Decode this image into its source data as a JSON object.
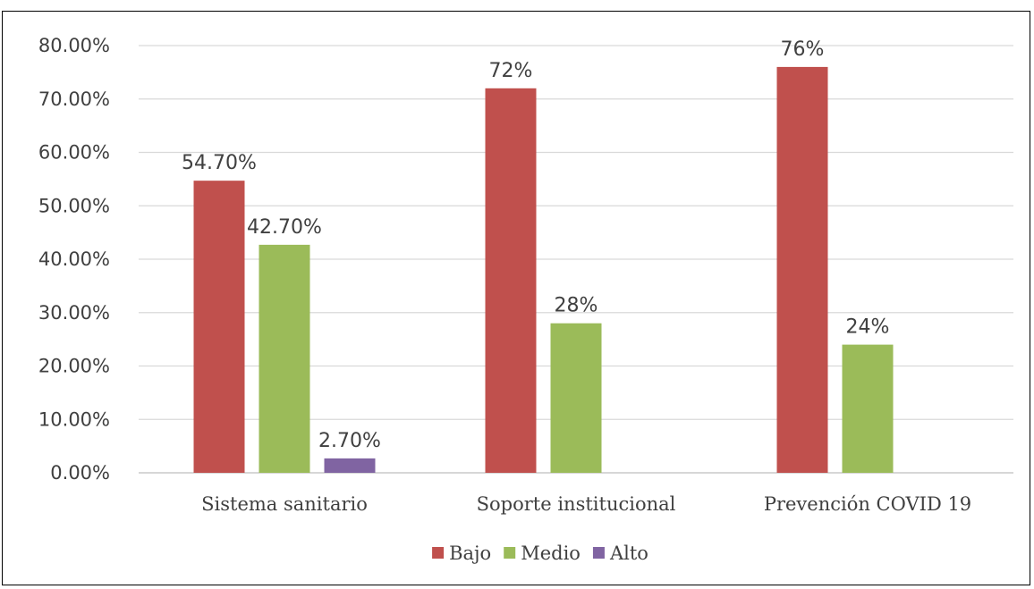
{
  "chart_data": {
    "type": "bar",
    "categories": [
      "Sistema sanitario",
      "Soporte institucional",
      "Prevención COVID 19"
    ],
    "series": [
      {
        "name": "Bajo",
        "color": "#c0504d",
        "values": [
          54.7,
          72,
          76
        ],
        "labels": [
          "54.70%",
          "72%",
          "76%"
        ]
      },
      {
        "name": "Medio",
        "color": "#9bbb59",
        "values": [
          42.7,
          28,
          24
        ],
        "labels": [
          "42.70%",
          "28%",
          "24%"
        ]
      },
      {
        "name": "Alto",
        "color": "#8064a2",
        "values": [
          2.7,
          null,
          null
        ],
        "labels": [
          "2.70%",
          "",
          ""
        ]
      }
    ],
    "yticks": [
      "0.00%",
      "10.00%",
      "20.00%",
      "30.00%",
      "40.00%",
      "50.00%",
      "60.00%",
      "70.00%",
      "80.00%"
    ],
    "ylim": [
      0,
      80
    ],
    "grid": true,
    "legend": "bottom",
    "title": "",
    "xlabel": "",
    "ylabel": ""
  }
}
